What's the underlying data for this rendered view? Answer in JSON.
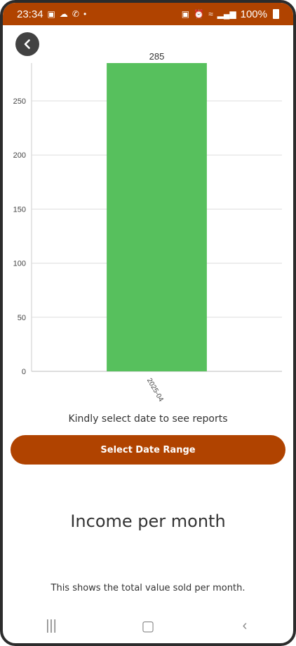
{
  "status_bar": {
    "time": "23:34",
    "battery": "100%",
    "left_icons": [
      "image-icon",
      "cloud-icon",
      "whatsapp-icon",
      "dot-icon"
    ],
    "right_icons": [
      "lock-icon",
      "alarm-icon",
      "wifi-icon",
      "signal-icon",
      "battery-icon"
    ]
  },
  "colors": {
    "accent": "#b04300",
    "bar": "#57c05d",
    "back_button": "#424242"
  },
  "chart_data": {
    "type": "bar",
    "categories": [
      "2025-04"
    ],
    "values": [
      285
    ],
    "data_labels": [
      "285"
    ],
    "title": "",
    "xlabel": "",
    "ylabel": "",
    "ylim": [
      0,
      285
    ],
    "yticks": [
      0,
      50,
      100,
      150,
      200,
      250
    ],
    "grid": true,
    "legend": "none"
  },
  "main": {
    "info_text": "Kindly select date to see reports",
    "button_label": "Select Date Range",
    "section_title": "Income per month",
    "section_desc": "This shows the total value sold per month."
  },
  "nav": {
    "icons": [
      "recent-apps-icon",
      "home-icon",
      "back-nav-icon"
    ]
  }
}
